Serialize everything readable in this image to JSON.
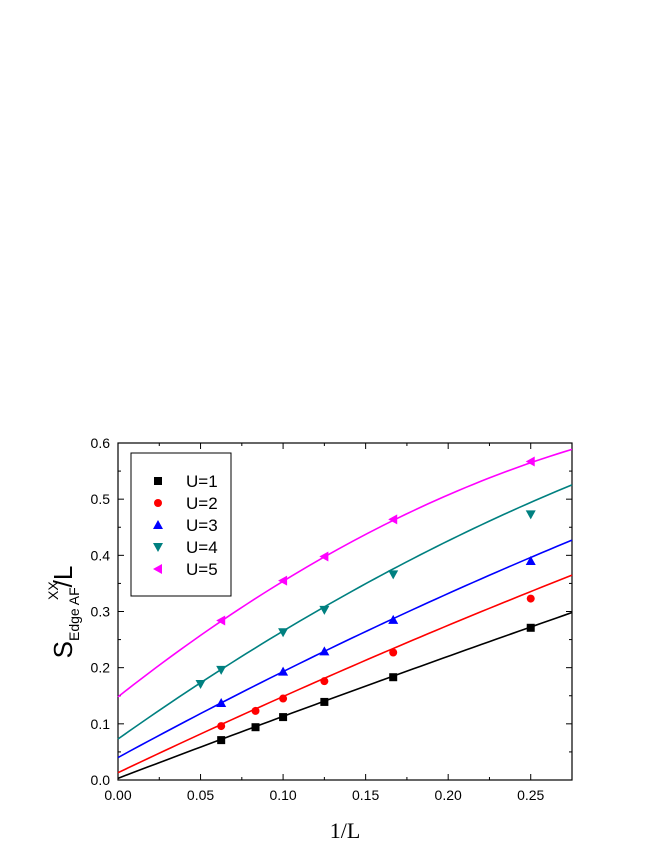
{
  "chart_data": {
    "type": "line",
    "xlabel": "1/L",
    "ylabel": {
      "main": "S",
      "sup": "XX",
      "sub": "Edge AF",
      "suffix": "/L"
    },
    "xlim": [
      0,
      0.275
    ],
    "ylim": [
      0,
      0.6
    ],
    "xticks": [
      "0.00",
      "0.05",
      "0.10",
      "0.15",
      "0.20",
      "0.25"
    ],
    "xtick_values": [
      0,
      0.05,
      0.1,
      0.15,
      0.2,
      0.25
    ],
    "yticks": [
      "0.0",
      "0.1",
      "0.2",
      "0.3",
      "0.4",
      "0.5",
      "0.6"
    ],
    "ytick_values": [
      0,
      0.1,
      0.2,
      0.3,
      0.4,
      0.5,
      0.6
    ],
    "grid": false,
    "legend_position": "top-left",
    "series": [
      {
        "name": "U=1",
        "color": "#000000",
        "marker": "square",
        "points": [
          [
            0.0625,
            0.071
          ],
          [
            0.0833,
            0.094
          ],
          [
            0.1,
            0.112
          ],
          [
            0.125,
            0.139
          ],
          [
            0.1667,
            0.183
          ],
          [
            0.25,
            0.271
          ]
        ],
        "fit": {
          "intercept": 0.003,
          "slope": 1.12,
          "quad": -0.17
        }
      },
      {
        "name": "U=2",
        "color": "#ff0000",
        "marker": "circle",
        "points": [
          [
            0.0625,
            0.096
          ],
          [
            0.0833,
            0.123
          ],
          [
            0.1,
            0.145
          ],
          [
            0.125,
            0.176
          ],
          [
            0.1667,
            0.227
          ],
          [
            0.25,
            0.323
          ]
        ],
        "fit": {
          "intercept": 0.013,
          "slope": 1.4,
          "quad": -0.44
        }
      },
      {
        "name": "U=3",
        "color": "#0000ff",
        "marker": "triangle-up",
        "points": [
          [
            0.0625,
            0.137
          ],
          [
            0.1,
            0.193
          ],
          [
            0.125,
            0.229
          ],
          [
            0.1667,
            0.285
          ],
          [
            0.25,
            0.39
          ]
        ],
        "fit": {
          "intercept": 0.04,
          "slope": 1.6,
          "quad": -0.7
        }
      },
      {
        "name": "U=4",
        "color": "#008080",
        "marker": "triangle-down",
        "points": [
          [
            0.05,
            0.171
          ],
          [
            0.0625,
            0.196
          ],
          [
            0.1,
            0.263
          ],
          [
            0.125,
            0.303
          ],
          [
            0.1667,
            0.366
          ],
          [
            0.25,
            0.473
          ]
        ],
        "fit": {
          "intercept": 0.073,
          "slope": 2.08,
          "quad": -1.58
        }
      },
      {
        "name": "U=5",
        "color": "#ff00ff",
        "marker": "triangle-left",
        "points": [
          [
            0.0625,
            0.284
          ],
          [
            0.1,
            0.355
          ],
          [
            0.125,
            0.398
          ],
          [
            0.1667,
            0.464
          ],
          [
            0.25,
            0.567
          ]
        ],
        "fit": {
          "intercept": 0.148,
          "slope": 2.32,
          "quad": -2.61
        }
      }
    ]
  }
}
